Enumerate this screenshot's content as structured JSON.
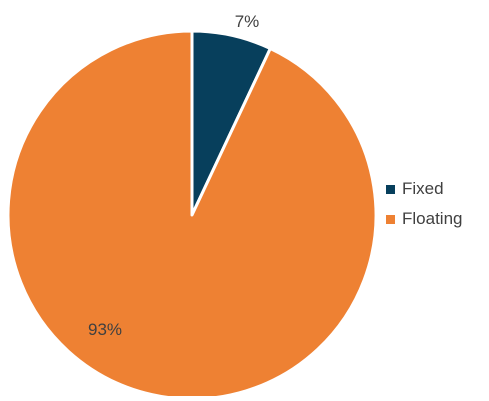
{
  "chart_data": {
    "type": "pie",
    "categories": [
      "Fixed",
      "Floating"
    ],
    "values": [
      7,
      93
    ],
    "data_labels": [
      "7%",
      "93%"
    ],
    "colors": [
      "#073f5c",
      "#ee8133"
    ],
    "slice_border_color": "#ffffff",
    "start_angle_deg": 0,
    "direction": "clockwise",
    "legend": {
      "position": "right",
      "entries": [
        "Fixed",
        "Floating"
      ]
    }
  }
}
